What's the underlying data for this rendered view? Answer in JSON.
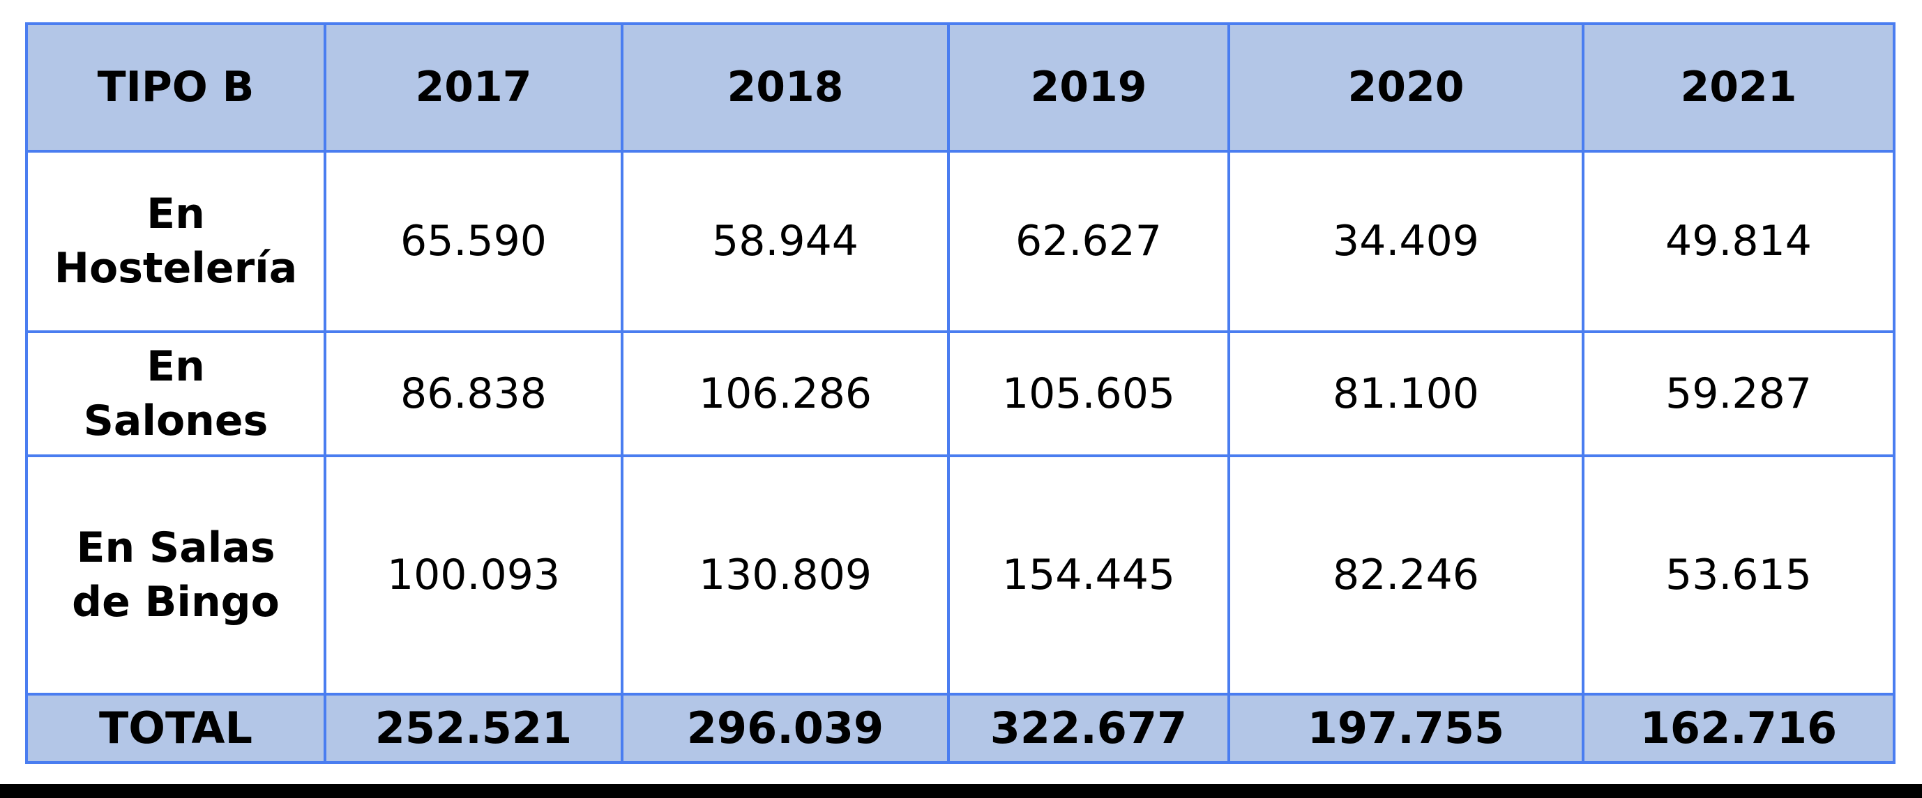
{
  "chart_data": {
    "type": "table",
    "columns": [
      "TIPO B",
      "2017",
      "2018",
      "2019",
      "2020",
      "2021"
    ],
    "rows": [
      {
        "label_lines": [
          "En",
          "Hostelería"
        ],
        "values": [
          "65.590",
          "58.944",
          "62.627",
          "34.409",
          "49.814"
        ]
      },
      {
        "label_lines": [
          "En",
          "Salones"
        ],
        "values": [
          "86.838",
          "106.286",
          "105.605",
          "81.100",
          "59.287"
        ]
      },
      {
        "label_lines": [
          "En Salas",
          "de Bingo"
        ],
        "values": [
          "100.093",
          "130.809",
          "154.445",
          "82.246",
          "53.615"
        ]
      }
    ],
    "total": {
      "label": "TOTAL",
      "values": [
        "252.521",
        "296.039",
        "322.677",
        "197.755",
        "162.716"
      ]
    }
  },
  "colors": {
    "header_bg": "#b3c6e7",
    "border": "#4a7df0",
    "cell_bg": "#ffffff",
    "text": "#000000"
  }
}
